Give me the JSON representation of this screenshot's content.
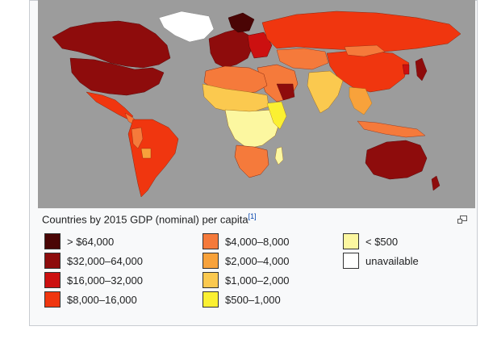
{
  "caption": {
    "text": "Countries by 2015 GDP (nominal) per capita",
    "ref": "[1]"
  },
  "legend": [
    {
      "label": "> $64,000",
      "color": "#4a0505"
    },
    {
      "label": "$32,000–64,000",
      "color": "#8e0c0c"
    },
    {
      "label": "$16,000–32,000",
      "color": "#cc1010"
    },
    {
      "label": "$8,000–16,000",
      "color": "#f0360f"
    },
    {
      "label": "$4,000–8,000",
      "color": "#f57a3b"
    },
    {
      "label": "$2,000–4,000",
      "color": "#f8a23b"
    },
    {
      "label": "$1,000–2,000",
      "color": "#fbc94f"
    },
    {
      "label": "$500–1,000",
      "color": "#fbf032"
    },
    {
      "label": "< $500",
      "color": "#fcf7a0"
    },
    {
      "label": "unavailable",
      "color": "#ffffff"
    }
  ],
  "map": {
    "ocean_color": "#9c9c9c",
    "icons": {
      "magnify": "magnify-icon"
    }
  }
}
